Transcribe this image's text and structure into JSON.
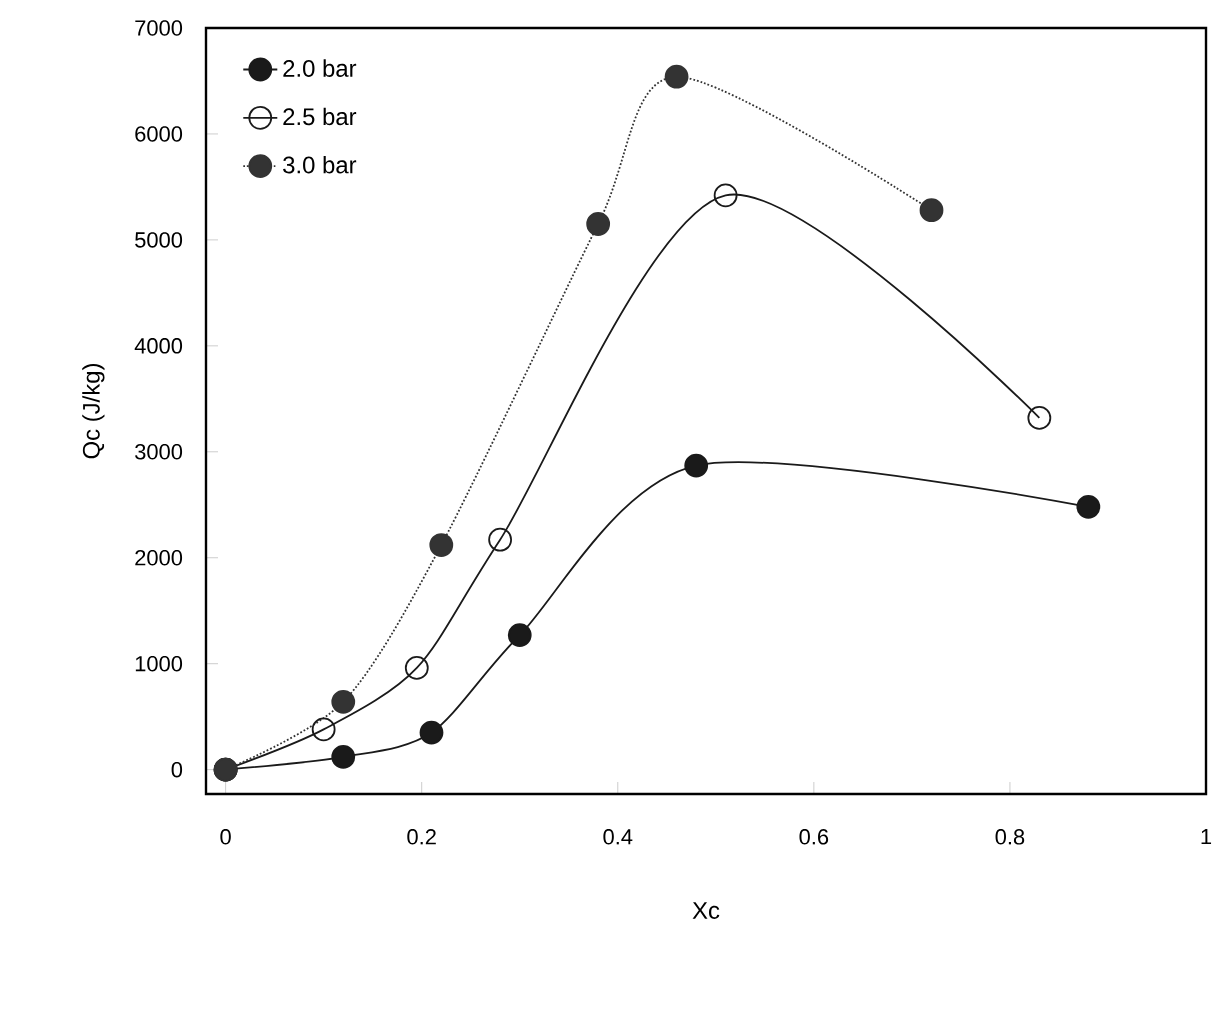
{
  "chart_data": {
    "type": "line",
    "xlabel": "Xc",
    "ylabel": "Qc (J/kg)",
    "xlim": [
      -0.02,
      1
    ],
    "ylim": [
      -230,
      7000
    ],
    "xticks": [
      0,
      0.2,
      0.4,
      0.6,
      0.8,
      1
    ],
    "yticks": [
      0,
      1000,
      2000,
      3000,
      4000,
      5000,
      6000,
      7000
    ],
    "grid": false,
    "legend": "top left",
    "marker": "circle",
    "series": [
      {
        "name": "2.0 bar",
        "color": "#1a1a1a",
        "line_style": "solid",
        "x": [
          0,
          0.12,
          0.21,
          0.3,
          0.48,
          0.88
        ],
        "values": [
          0,
          120,
          350,
          1270,
          2870,
          2480
        ]
      },
      {
        "name": "2.5 bar",
        "color": "#1a1a1a",
        "marker": "open circle",
        "line_style": "solid",
        "x": [
          0,
          0.1,
          0.195,
          0.28,
          0.51,
          0.83
        ],
        "values": [
          0,
          380,
          960,
          2170,
          5420,
          3320
        ]
      },
      {
        "name": "3.0 bar",
        "color": "#333333",
        "line_style": "dotted",
        "x": [
          0,
          0.12,
          0.22,
          0.38,
          0.46,
          0.72
        ],
        "values": [
          0,
          640,
          2120,
          5150,
          6540,
          5280
        ]
      }
    ]
  }
}
